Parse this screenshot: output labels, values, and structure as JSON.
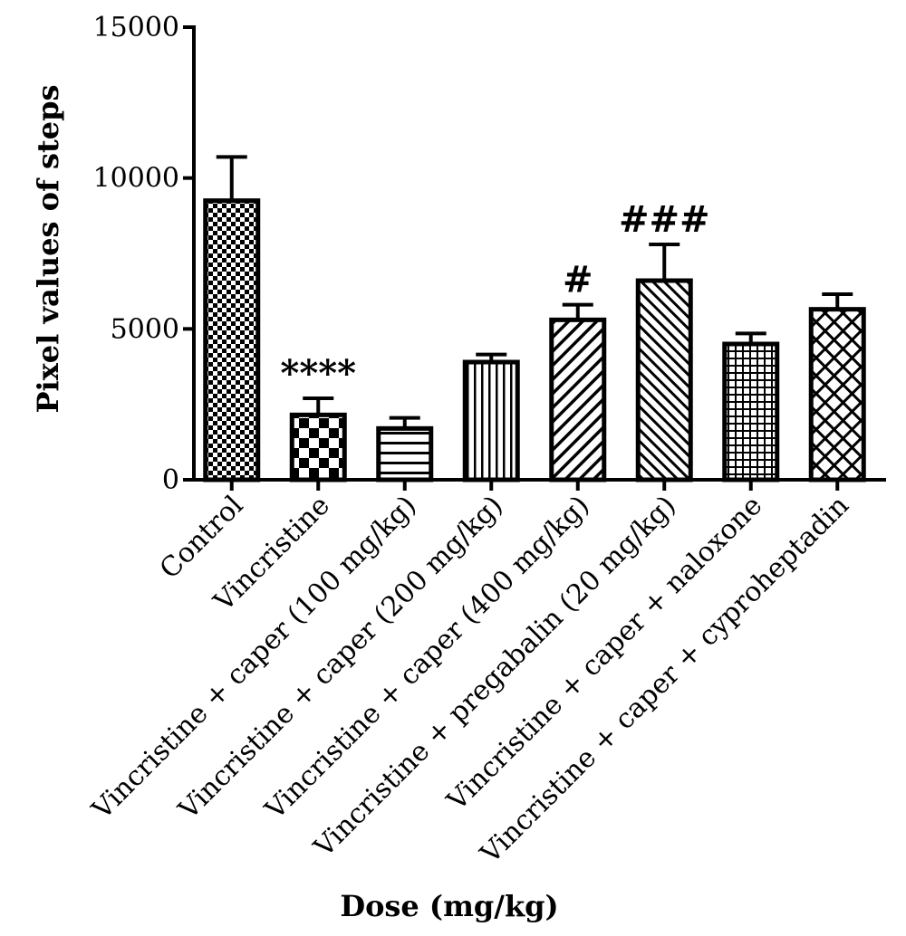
{
  "chart_data": {
    "type": "bar",
    "xlabel": "Dose (mg/kg)",
    "ylabel": "Pixel values of steps",
    "ylim": [
      0,
      15000
    ],
    "yticks": [
      "0",
      "5000",
      "10000",
      "15000"
    ],
    "categories": [
      "Control",
      "Vincristine",
      "Vincristine + caper (100 mg/kg)",
      "Vincristine + caper (200 mg/kg)",
      "Vincristine + caper (400 mg/kg)",
      "Vincristine + pregabalin (20 mg/kg)",
      "Vincristine + caper + naloxone",
      "Vincristine + caper + cyproheptadin"
    ],
    "values": [
      9250,
      2150,
      1700,
      3900,
      5300,
      6600,
      4500,
      5650
    ],
    "errors": [
      1450,
      550,
      350,
      250,
      500,
      1200,
      350,
      500
    ],
    "patterns": [
      "checker-small",
      "checker-large",
      "horizontal",
      "vertical",
      "diag-right",
      "diag-left",
      "grid",
      "crosshatch"
    ],
    "annotations": [
      "",
      "****",
      "",
      "",
      "#",
      "###",
      "",
      ""
    ],
    "bar_color": "#000000"
  }
}
